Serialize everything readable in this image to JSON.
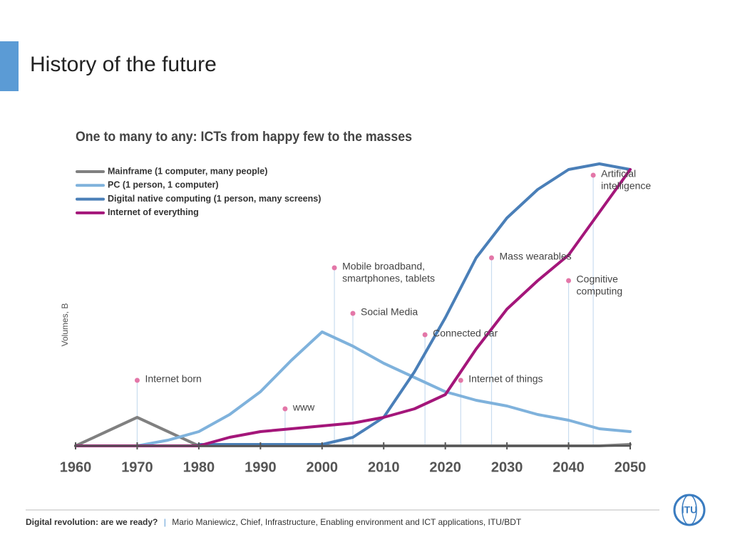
{
  "slide_title": "History of the future",
  "chart_data": {
    "type": "line",
    "title": "One to many to any:  ICTs from happy few to the masses",
    "y_label": "Volumes, B",
    "x": [
      1960,
      1965,
      1970,
      1975,
      1980,
      1985,
      1990,
      1995,
      2000,
      2005,
      2010,
      2015,
      2020,
      2025,
      2030,
      2035,
      2040,
      2045,
      2050
    ],
    "xlim": [
      1960,
      2050
    ],
    "xticks": [
      1960,
      1970,
      1980,
      1990,
      2000,
      2010,
      2020,
      2030,
      2040,
      2050
    ],
    "ylim": [
      0,
      100
    ],
    "series": [
      {
        "name": "Mainframe (1 computer, many people)",
        "color": "#808080",
        "values": [
          0,
          5,
          10,
          5,
          0,
          0,
          0,
          0,
          0,
          0,
          0,
          0,
          0,
          0,
          0,
          0,
          0,
          0,
          0.5
        ]
      },
      {
        "name": "PC (1 person, 1 computer)",
        "color": "#7fb2dc",
        "values": [
          null,
          null,
          0,
          2,
          5,
          11,
          19,
          30,
          40,
          35,
          29,
          24,
          19,
          16,
          14,
          11,
          9,
          6,
          5
        ]
      },
      {
        "name": "Digital native computing (1 person, many screens)",
        "color": "#4a7fb8",
        "values": [
          null,
          null,
          null,
          null,
          0.5,
          0.5,
          0.5,
          0.5,
          0.5,
          3,
          10,
          26,
          45,
          66,
          80,
          90,
          97,
          99,
          97
        ]
      },
      {
        "name": "Internet of everything",
        "color": "#a4167a",
        "values": [
          0,
          0,
          0,
          0,
          0,
          3,
          5,
          6,
          7,
          8,
          10,
          13,
          18,
          34,
          48,
          58,
          67,
          82,
          97
        ]
      }
    ],
    "annotations": [
      {
        "label": [
          "Internet born"
        ],
        "x": 1970,
        "y": 23
      },
      {
        "label": [
          "www"
        ],
        "x": 1994,
        "y": 13
      },
      {
        "label": [
          "Mobile broadband,",
          "smartphones, tablets"
        ],
        "x": 2002,
        "y": 62.5
      },
      {
        "label": [
          "Social Media"
        ],
        "x": 2005,
        "y": 46.5
      },
      {
        "label": [
          "Connected car"
        ],
        "x": 2016.7,
        "y": 39
      },
      {
        "label": [
          "Internet of things"
        ],
        "x": 2022.5,
        "y": 23
      },
      {
        "label": [
          "Mass wearables"
        ],
        "x": 2027.5,
        "y": 66
      },
      {
        "label": [
          "Cognitive",
          "computing"
        ],
        "x": 2040,
        "y": 58
      },
      {
        "label": [
          "Artificial",
          "intelligence"
        ],
        "x": 2044,
        "y": 95
      }
    ]
  },
  "footer": {
    "bold": "Digital revolution: are we ready?",
    "separator": "|",
    "text": "Mario Maniewicz, Chief, Infrastructure, Enabling environment and ICT applications, ITU/BDT"
  },
  "logo": "ITU"
}
